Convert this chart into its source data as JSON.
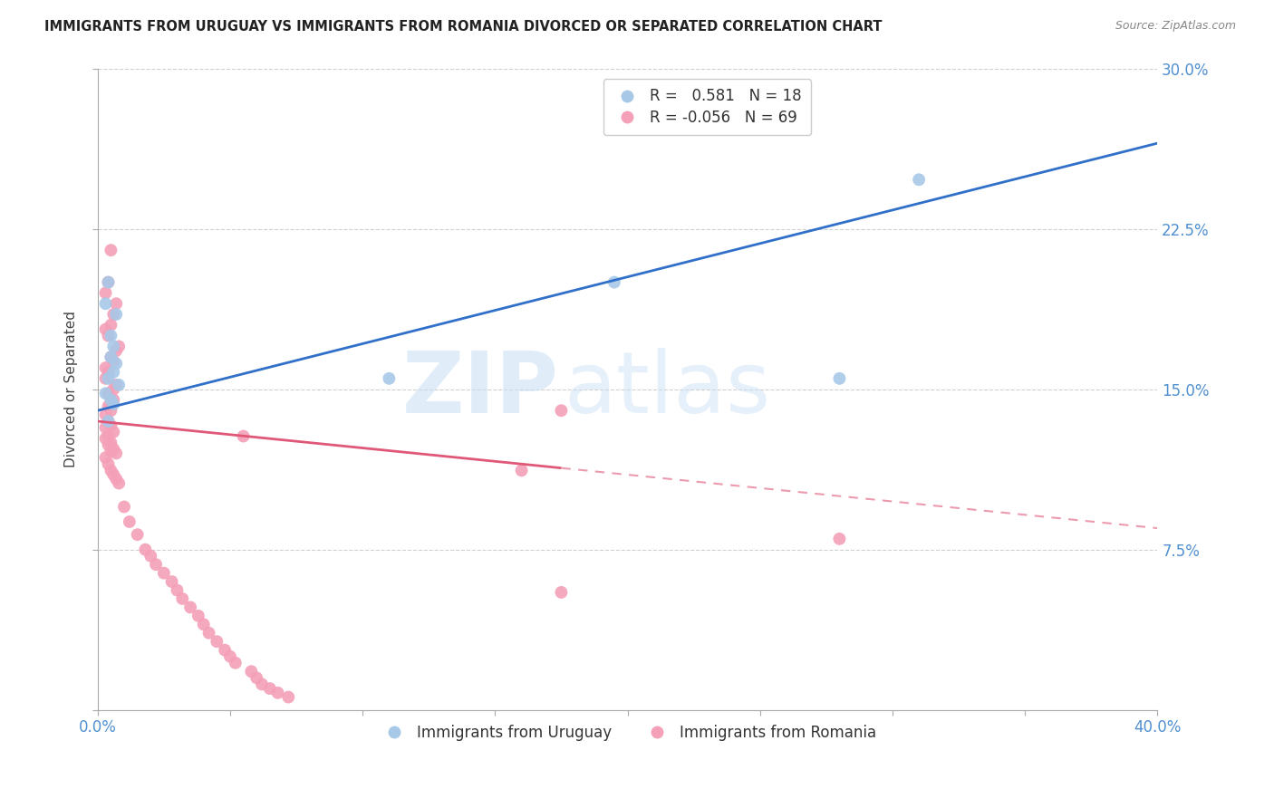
{
  "title": "IMMIGRANTS FROM URUGUAY VS IMMIGRANTS FROM ROMANIA DIVORCED OR SEPARATED CORRELATION CHART",
  "source": "Source: ZipAtlas.com",
  "ylabel": "Divorced or Separated",
  "xlim": [
    0.0,
    0.4
  ],
  "ylim": [
    0.0,
    0.3
  ],
  "watermark_zip": "ZIP",
  "watermark_atlas": "atlas",
  "legend_uruguay_r": "0.581",
  "legend_uruguay_n": "18",
  "legend_romania_r": "-0.056",
  "legend_romania_n": "69",
  "uruguay_color": "#a8c8e8",
  "romania_color": "#f4a0b8",
  "uruguay_line_color": "#3070c8",
  "romania_line_color": "#e05878",
  "uruguay_scatter_x": [
    0.003,
    0.004,
    0.005,
    0.006,
    0.007,
    0.008,
    0.004,
    0.006,
    0.005,
    0.007,
    0.003,
    0.005,
    0.006,
    0.004,
    0.11,
    0.195,
    0.28,
    0.31
  ],
  "uruguay_scatter_y": [
    0.148,
    0.155,
    0.145,
    0.158,
    0.162,
    0.152,
    0.135,
    0.143,
    0.175,
    0.185,
    0.19,
    0.165,
    0.17,
    0.2,
    0.155,
    0.2,
    0.155,
    0.248
  ],
  "romania_scatter_x": [
    0.003,
    0.004,
    0.005,
    0.006,
    0.007,
    0.003,
    0.004,
    0.005,
    0.003,
    0.004,
    0.005,
    0.006,
    0.007,
    0.008,
    0.004,
    0.005,
    0.006,
    0.003,
    0.004,
    0.005,
    0.006,
    0.003,
    0.004,
    0.005,
    0.006,
    0.007,
    0.003,
    0.004,
    0.005,
    0.006,
    0.007,
    0.008,
    0.003,
    0.004,
    0.005,
    0.006,
    0.007,
    0.003,
    0.004,
    0.005,
    0.01,
    0.012,
    0.015,
    0.018,
    0.02,
    0.022,
    0.025,
    0.028,
    0.03,
    0.032,
    0.035,
    0.038,
    0.04,
    0.042,
    0.045,
    0.048,
    0.05,
    0.052,
    0.055,
    0.058,
    0.06,
    0.062,
    0.065,
    0.068,
    0.072,
    0.16,
    0.175,
    0.28,
    0.175
  ],
  "romania_scatter_y": [
    0.132,
    0.128,
    0.125,
    0.122,
    0.12,
    0.127,
    0.124,
    0.121,
    0.118,
    0.115,
    0.112,
    0.11,
    0.108,
    0.106,
    0.135,
    0.133,
    0.13,
    0.138,
    0.142,
    0.14,
    0.145,
    0.155,
    0.148,
    0.143,
    0.15,
    0.152,
    0.16,
    0.158,
    0.165,
    0.163,
    0.168,
    0.17,
    0.178,
    0.175,
    0.18,
    0.185,
    0.19,
    0.195,
    0.2,
    0.215,
    0.095,
    0.088,
    0.082,
    0.075,
    0.072,
    0.068,
    0.064,
    0.06,
    0.056,
    0.052,
    0.048,
    0.044,
    0.04,
    0.036,
    0.032,
    0.028,
    0.025,
    0.022,
    0.128,
    0.018,
    0.015,
    0.012,
    0.01,
    0.008,
    0.006,
    0.112,
    0.14,
    0.08,
    0.055
  ],
  "background_color": "#ffffff",
  "grid_color": "#d0d0d0",
  "tick_color": "#5090d0",
  "axis_color": "#aaaaaa"
}
